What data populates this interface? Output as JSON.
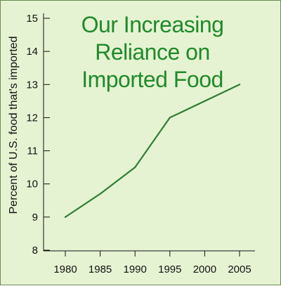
{
  "chart_data": {
    "type": "line",
    "title": "Our Increasing Reliance on Imported Food",
    "title_lines": [
      "Our Increasing",
      "Reliance on",
      "Imported Food"
    ],
    "ylabel": "Percent of U.S. food that's imported",
    "xlabel": "",
    "x": [
      1980,
      1985,
      1990,
      1995,
      2005
    ],
    "series": [
      {
        "values": [
          9.0,
          9.7,
          10.5,
          12.0,
          13.0
        ]
      }
    ],
    "xticks": [
      "1980",
      "1985",
      "1990",
      "1995",
      "2000",
      "2005"
    ],
    "yticks": [
      "8",
      "9",
      "10",
      "11",
      "12",
      "13",
      "14",
      "15"
    ],
    "xlim": [
      1980,
      2005
    ],
    "ylim": [
      8,
      15
    ],
    "grid": false,
    "colors": {
      "line": "#2e7d32",
      "title": "#1f8a2a",
      "background": "#e6f3d3"
    }
  }
}
